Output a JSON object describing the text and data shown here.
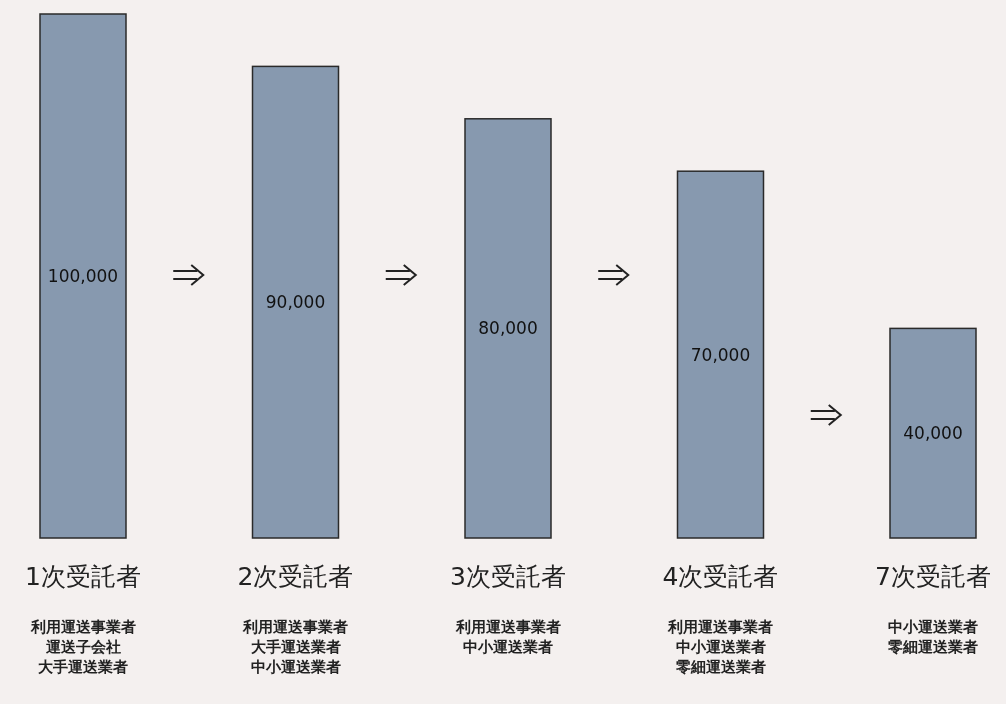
{
  "chart_data": {
    "type": "bar",
    "categories": [
      "1次受託者",
      "2次受託者",
      "3次受託者",
      "4次受託者",
      "7次受託者"
    ],
    "values": [
      100000,
      90000,
      80000,
      70000,
      40000
    ],
    "value_labels": [
      "100,000",
      "90,000",
      "80,000",
      "70,000",
      "40,000"
    ],
    "color": "#8799af",
    "annotations": [
      "利用運送事業者",
      "運送子会社",
      "大手運送業者",
      "利用運送事業者",
      "大手運送業者",
      "中小運送業者",
      "利用運送事業者",
      "中小運送業者",
      "利用運送事業者",
      "中小運送業者",
      "零細運送業者",
      "中小運送業者",
      "零細運送業者"
    ]
  }
}
